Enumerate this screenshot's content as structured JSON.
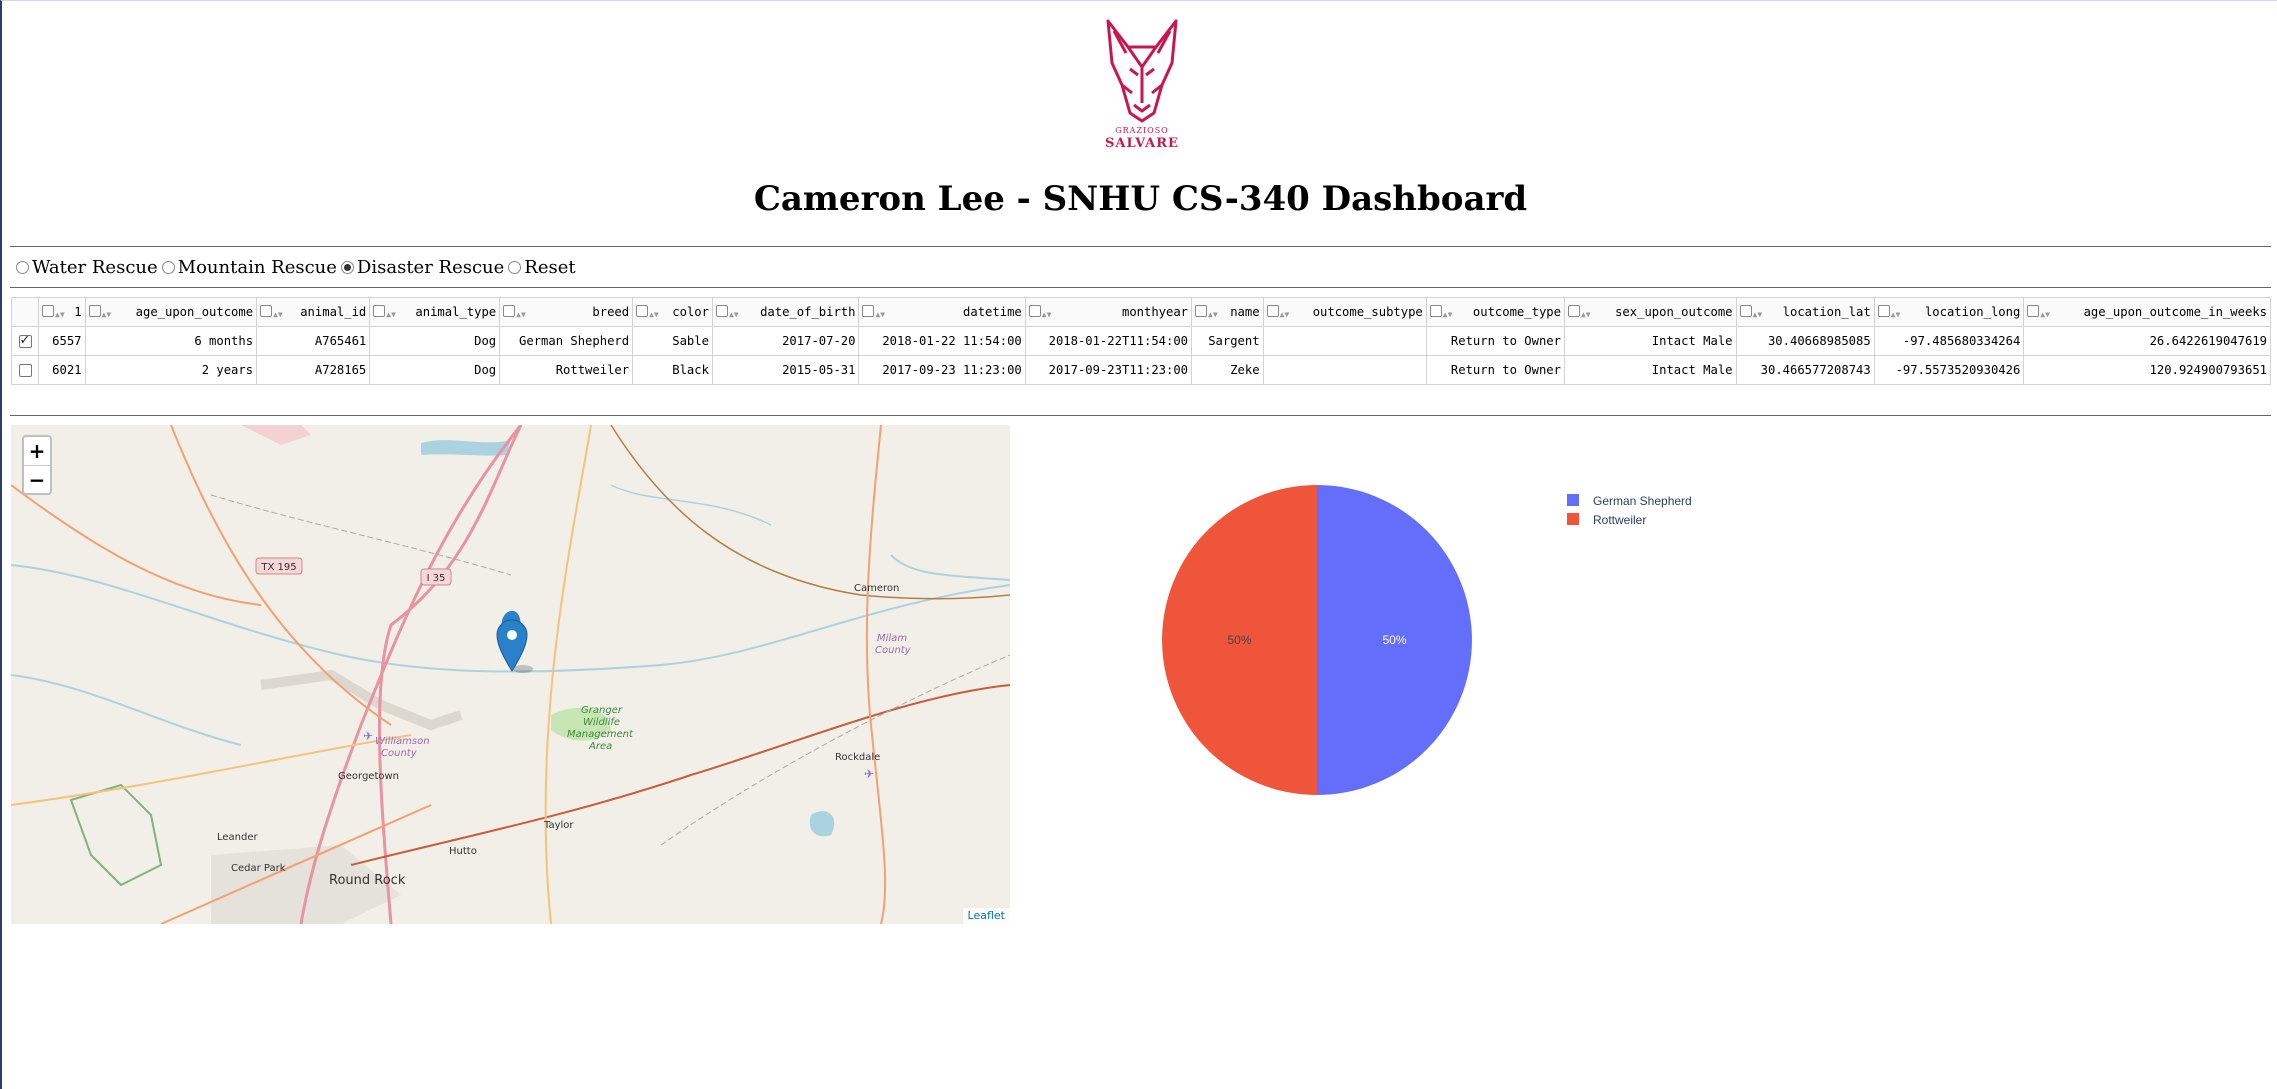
{
  "header": {
    "logo": {
      "line1": "GRAZIOSO",
      "line2": "SALVARE",
      "icon": "dog-head-logo",
      "color": "#c8174e"
    },
    "title": "Cameron Lee - SNHU CS-340 Dashboard"
  },
  "filters": {
    "options": [
      {
        "label": "Water Rescue",
        "selected": false
      },
      {
        "label": "Mountain Rescue",
        "selected": false
      },
      {
        "label": "Disaster Rescue",
        "selected": true
      },
      {
        "label": "Reset",
        "selected": false
      }
    ]
  },
  "table": {
    "columns": [
      "1",
      "age_upon_outcome",
      "animal_id",
      "animal_type",
      "breed",
      "color",
      "date_of_birth",
      "datetime",
      "monthyear",
      "name",
      "outcome_subtype",
      "outcome_type",
      "sex_upon_outcome",
      "location_lat",
      "location_long",
      "age_upon_outcome_in_weeks"
    ],
    "rows": [
      {
        "selected": true,
        "cells": [
          "6557",
          "6 months",
          "A765461",
          "Dog",
          "German Shepherd",
          "Sable",
          "2017-07-20",
          "2018-01-22 11:54:00",
          "2018-01-22T11:54:00",
          "Sargent",
          "",
          "Return to Owner",
          "Intact Male",
          "30.40668985085",
          "-97.485680334264",
          "26.6422619047619"
        ]
      },
      {
        "selected": false,
        "cells": [
          "6021",
          "2 years",
          "A728165",
          "Dog",
          "Rottweiler",
          "Black",
          "2015-05-31",
          "2017-09-23 11:23:00",
          "2017-09-23T11:23:00",
          "Zeke",
          "",
          "Return to Owner",
          "Intact Male",
          "30.466577208743",
          "-97.5573520930426",
          "120.924900793651"
        ]
      }
    ]
  },
  "map": {
    "zoom_in": "+",
    "zoom_out": "−",
    "attribution": "Leaflet",
    "labels": {
      "tx195": "TX 195",
      "i35": "I 35",
      "cameron": "Cameron",
      "milam1": "Milam",
      "milam2": "County",
      "granger1": "Granger",
      "granger2": "Wildlife",
      "granger3": "Management",
      "granger4": "Area",
      "williamson1": "Williamson",
      "williamson2": "County",
      "georgetown": "Georgetown",
      "rockdale": "Rockdale",
      "leander": "Leander",
      "taylor": "Taylor",
      "hutto": "Hutto",
      "cedarpark": "Cedar Park",
      "roundrock": "Round Rock"
    },
    "marker_icon": "map-pin-icon"
  },
  "chart_data": {
    "type": "pie",
    "labels": [
      "German Shepherd",
      "Rottweiler"
    ],
    "values": [
      50,
      50
    ],
    "colors": [
      "#636efa",
      "#ef553b"
    ],
    "text": [
      "50%",
      "50%"
    ],
    "legend": "top-right"
  }
}
